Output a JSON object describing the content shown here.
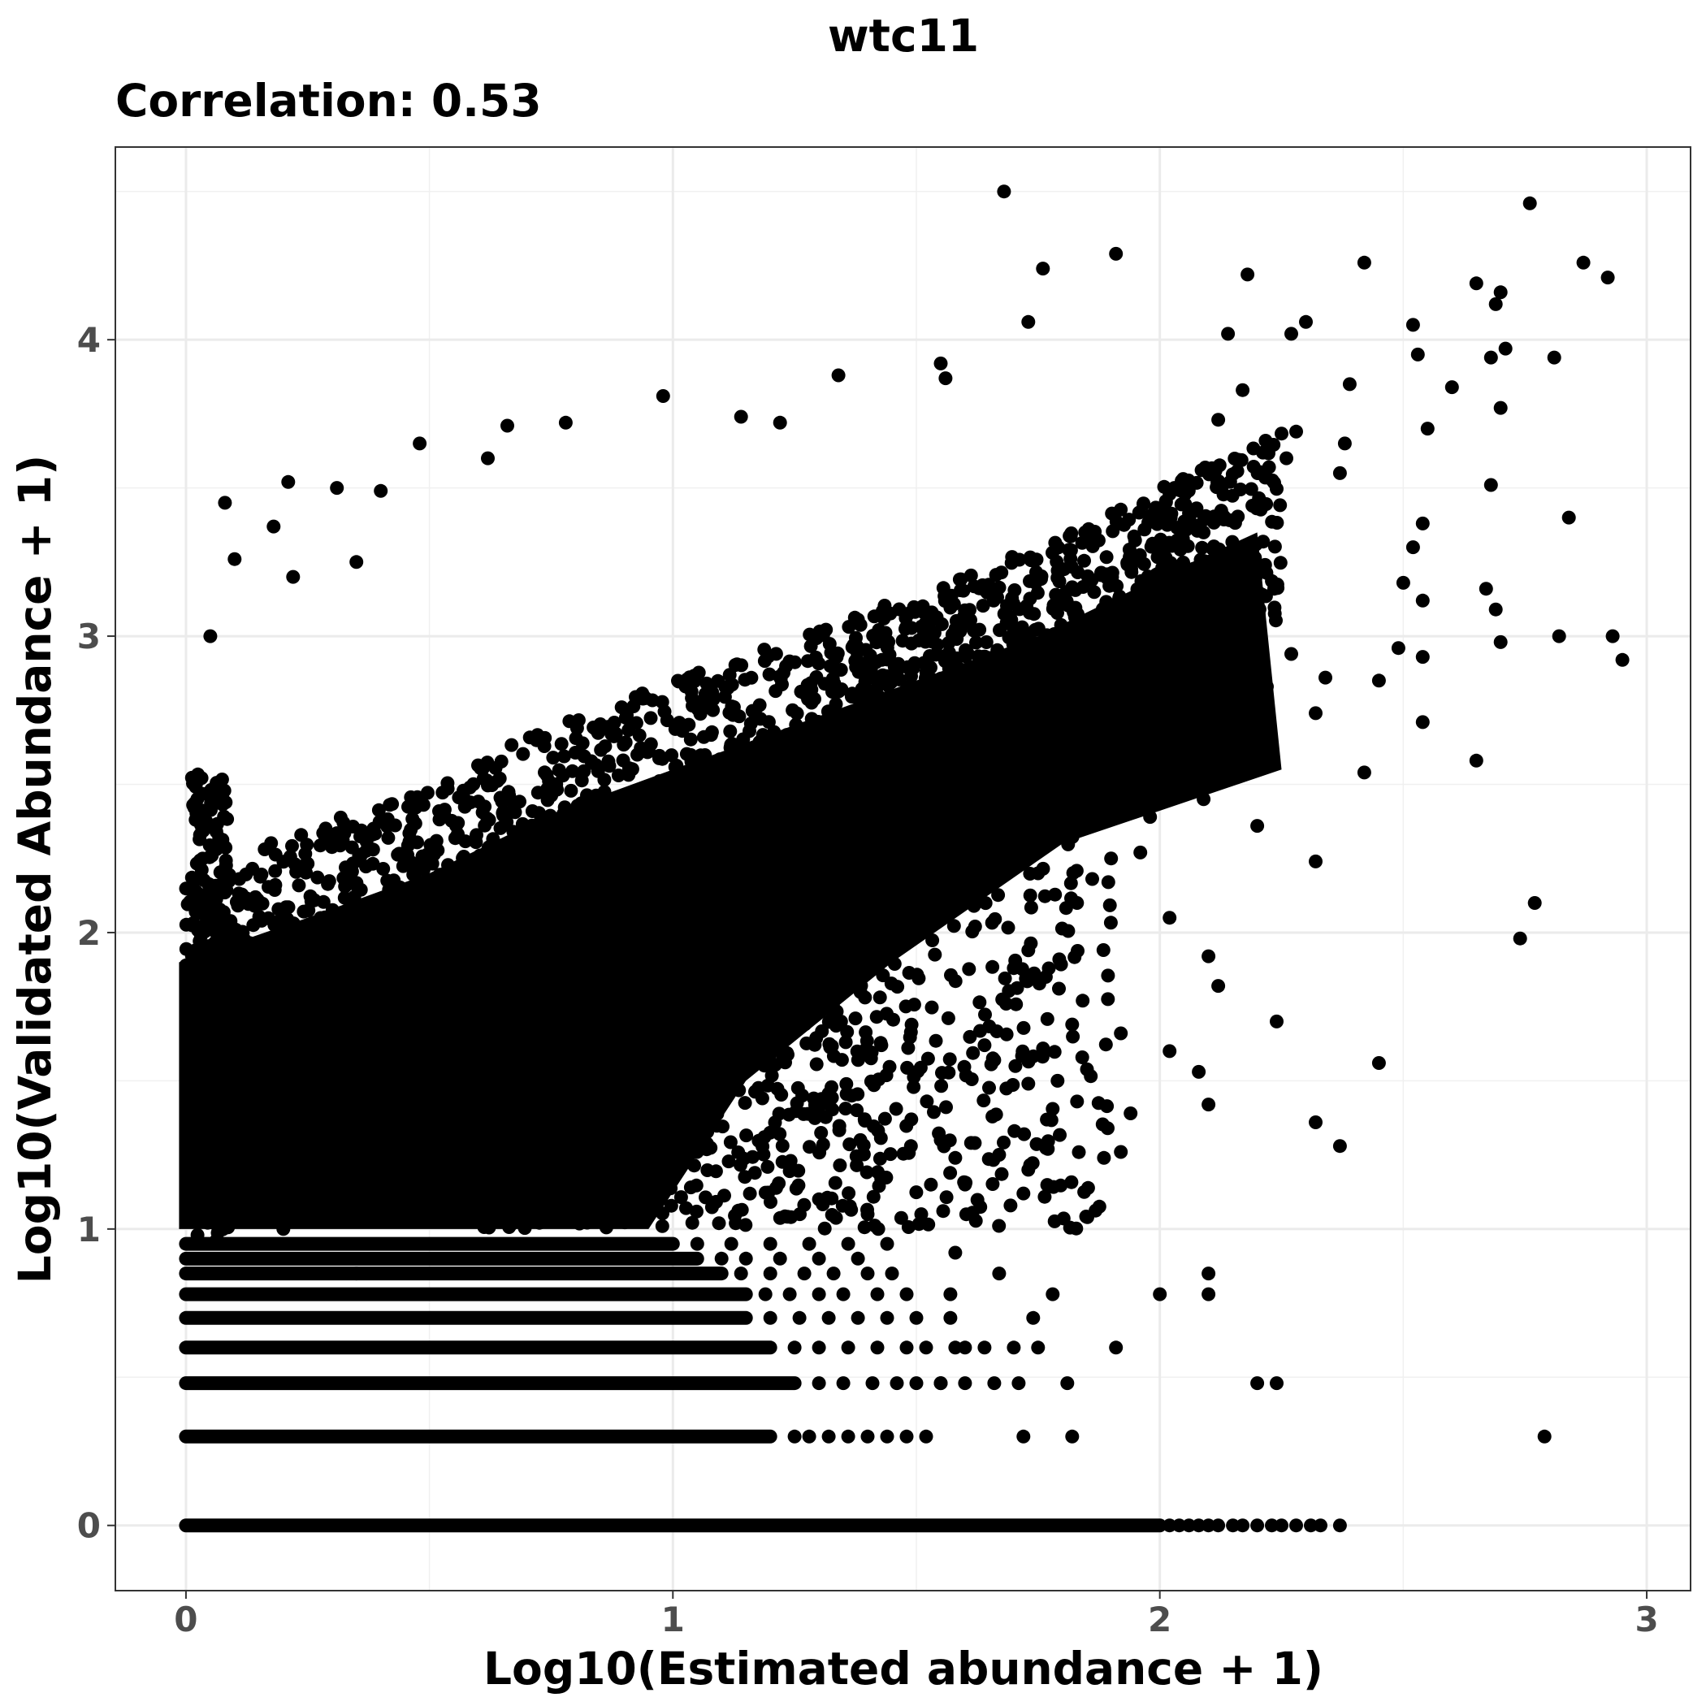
{
  "chart_data": {
    "type": "scatter",
    "title": "wtc11",
    "subtitle": "Correlation: 0.53",
    "xlabel": "Log10(Estimated abundance + 1)",
    "ylabel": "Log10(Validated Abundance + 1)",
    "xlim": [
      -0.145,
      3.09
    ],
    "ylim": [
      -0.22,
      4.65
    ],
    "x_ticks": [
      0,
      1,
      2,
      3
    ],
    "y_ticks": [
      0,
      1,
      2,
      3,
      4
    ],
    "x_tick_labels": [
      "0",
      "1",
      "2",
      "3"
    ],
    "y_tick_labels": [
      "0",
      "1",
      "2",
      "3",
      "4"
    ],
    "grid": true,
    "legend": "none",
    "point_color": "#000000",
    "series": [
      {
        "points": [
          [
            1.68,
            4.5
          ],
          [
            2.76,
            4.46
          ],
          [
            1.91,
            4.29
          ],
          [
            2.42,
            4.26
          ],
          [
            2.87,
            4.26
          ],
          [
            2.92,
            4.21
          ],
          [
            1.76,
            4.24
          ],
          [
            2.18,
            4.22
          ],
          [
            2.65,
            4.19
          ],
          [
            2.7,
            4.16
          ],
          [
            2.69,
            4.12
          ],
          [
            1.73,
            4.06
          ],
          [
            2.52,
            4.05
          ],
          [
            2.3,
            4.06
          ],
          [
            2.27,
            4.02
          ],
          [
            2.71,
            3.97
          ],
          [
            2.68,
            3.94
          ],
          [
            2.81,
            3.94
          ],
          [
            2.53,
            3.95
          ],
          [
            2.14,
            4.02
          ],
          [
            2.39,
            3.85
          ],
          [
            2.6,
            3.84
          ],
          [
            2.55,
            3.7
          ],
          [
            2.7,
            3.77
          ],
          [
            2.84,
            3.4
          ],
          [
            2.68,
            3.51
          ],
          [
            2.54,
            3.38
          ],
          [
            2.52,
            3.3
          ],
          [
            2.5,
            3.18
          ],
          [
            2.54,
            3.12
          ],
          [
            2.67,
            3.16
          ],
          [
            2.69,
            3.09
          ],
          [
            2.7,
            2.98
          ],
          [
            2.82,
            3.0
          ],
          [
            2.93,
            3.0
          ],
          [
            2.95,
            2.92
          ],
          [
            2.54,
            2.93
          ],
          [
            2.49,
            2.96
          ],
          [
            2.32,
            2.74
          ],
          [
            2.54,
            2.71
          ],
          [
            2.65,
            2.58
          ],
          [
            2.42,
            2.54
          ],
          [
            2.45,
            2.85
          ],
          [
            2.34,
            2.86
          ],
          [
            2.27,
            2.94
          ],
          [
            2.74,
            1.98
          ],
          [
            2.77,
            2.1
          ],
          [
            2.32,
            2.24
          ],
          [
            2.45,
            1.56
          ],
          [
            2.24,
            1.7
          ],
          [
            2.37,
            1.28
          ],
          [
            2.32,
            1.36
          ],
          [
            2.79,
            0.3
          ],
          [
            1.34,
            3.88
          ],
          [
            1.55,
            3.92
          ],
          [
            1.56,
            3.87
          ],
          [
            0.98,
            3.81
          ],
          [
            0.66,
            3.71
          ],
          [
            0.78,
            3.72
          ],
          [
            0.48,
            3.65
          ],
          [
            0.62,
            3.6
          ],
          [
            0.08,
            3.45
          ],
          [
            0.21,
            3.52
          ],
          [
            0.31,
            3.5
          ],
          [
            0.4,
            3.49
          ],
          [
            0.05,
            3.0
          ],
          [
            0.18,
            3.37
          ],
          [
            0.1,
            3.26
          ],
          [
            1.22,
            3.72
          ],
          [
            1.14,
            3.74
          ],
          [
            0.35,
            3.25
          ],
          [
            0.22,
            3.2
          ],
          [
            2.17,
            3.83
          ],
          [
            2.12,
            3.73
          ],
          [
            2.28,
            3.69
          ],
          [
            2.37,
            3.55
          ],
          [
            2.38,
            3.65
          ],
          [
            2.26,
            3.6
          ],
          [
            2.19,
            3.44
          ],
          [
            2.03,
            3.5
          ],
          [
            2.09,
            3.35
          ],
          [
            2.21,
            3.14
          ],
          [
            2.15,
            3.05
          ],
          [
            2.22,
            2.83
          ],
          [
            2.14,
            2.7
          ],
          [
            2.09,
            2.45
          ],
          [
            2.2,
            2.36
          ],
          [
            2.02,
            2.05
          ],
          [
            2.1,
            1.92
          ],
          [
            2.12,
            1.82
          ],
          [
            2.02,
            1.6
          ],
          [
            2.08,
            1.53
          ],
          [
            2.1,
            1.42
          ],
          [
            1.92,
            1.66
          ],
          [
            1.92,
            1.26
          ],
          [
            1.94,
            1.39
          ],
          [
            1.91,
            0.6
          ],
          [
            2.1,
            0.85
          ],
          [
            2.0,
            0.78
          ],
          [
            2.1,
            0.78
          ],
          [
            2.2,
            0.48
          ],
          [
            2.24,
            0.48
          ],
          [
            1.82,
            1.69
          ],
          [
            1.79,
            1.5
          ],
          [
            1.83,
            1.43
          ],
          [
            1.77,
            1.27
          ],
          [
            1.72,
            1.12
          ],
          [
            1.73,
            1.2
          ],
          [
            1.6,
            1.15
          ],
          [
            1.62,
            1.29
          ],
          [
            1.58,
            1.24
          ],
          [
            1.67,
            0.85
          ],
          [
            1.51,
            1.05
          ],
          [
            1.58,
            0.92
          ],
          [
            1.78,
            0.78
          ],
          [
            1.72,
            0.3
          ],
          [
            1.82,
            0.3
          ],
          [
            1.81,
            0.48
          ],
          [
            1.64,
            1.62
          ],
          [
            1.66,
            1.57
          ],
          [
            1.73,
            1.49
          ],
          [
            1.7,
            1.88
          ],
          [
            1.73,
            1.94
          ],
          [
            1.75,
            2.2
          ],
          [
            1.83,
            2.1
          ],
          [
            1.9,
            2.25
          ],
          [
            1.98,
            2.39
          ],
          [
            1.96,
            2.27
          ],
          [
            1.88,
            2.5
          ],
          [
            1.85,
            2.62
          ],
          [
            1.95,
            2.6
          ],
          [
            2.05,
            2.56
          ],
          [
            2.0,
            2.8
          ],
          [
            2.07,
            2.8
          ],
          [
            0.2,
            1.0
          ],
          [
            0.35,
            0.85
          ],
          [
            1.3,
            1.1
          ],
          [
            1.4,
            1.05
          ],
          [
            1.55,
            1.3
          ],
          [
            1.6,
            0.6
          ],
          [
            1.55,
            0.48
          ]
        ],
        "rows": [
          {
            "y": 0,
            "x_from": 0,
            "x_to": 2.0,
            "scatter_x": [
              2.02,
              2.04,
              2.06,
              2.08,
              2.1,
              2.12,
              2.15,
              2.17,
              2.2,
              2.23,
              2.25,
              2.28,
              2.31,
              2.33,
              2.37
            ]
          },
          {
            "y": 0.3,
            "x_from": 0,
            "x_to": 1.2,
            "scatter_x": [
              1.25,
              1.28,
              1.32,
              1.36,
              1.4,
              1.44,
              1.48,
              1.52
            ]
          },
          {
            "y": 0.48,
            "x_from": 0,
            "x_to": 1.25,
            "scatter_x": [
              1.3,
              1.35,
              1.41,
              1.46,
              1.5,
              1.55,
              1.6,
              1.66,
              1.71
            ]
          },
          {
            "y": 0.6,
            "x_from": 0,
            "x_to": 1.2,
            "scatter_x": [
              1.25,
              1.3,
              1.36,
              1.42,
              1.48,
              1.52,
              1.58,
              1.64,
              1.7,
              1.75
            ]
          },
          {
            "y": 0.7,
            "x_from": 0,
            "x_to": 1.15,
            "scatter_x": [
              1.2,
              1.26,
              1.32,
              1.38,
              1.44,
              1.5,
              1.57,
              1.74
            ]
          },
          {
            "y": 0.78,
            "x_from": 0,
            "x_to": 1.15,
            "scatter_x": [
              1.19,
              1.24,
              1.3,
              1.35,
              1.42,
              1.48,
              1.57
            ]
          },
          {
            "y": 0.85,
            "x_from": 0,
            "x_to": 1.1,
            "scatter_x": [
              1.14,
              1.2,
              1.27,
              1.33,
              1.4,
              1.45
            ]
          },
          {
            "y": 0.9,
            "x_from": 0,
            "x_to": 1.05,
            "scatter_x": [
              1.1,
              1.15,
              1.22,
              1.3,
              1.38
            ]
          },
          {
            "y": 0.95,
            "x_from": 0,
            "x_to": 1.0,
            "scatter_x": [
              1.05,
              1.12,
              1.2,
              1.28,
              1.36,
              1.44
            ]
          }
        ],
        "dense_region": {
          "description_free": true,
          "spine": [
            [
              0.0,
              1.9
            ],
            [
              0.25,
              2.05
            ],
            [
              0.5,
              2.2
            ],
            [
              0.75,
              2.4
            ],
            [
              1.0,
              2.55
            ],
            [
              1.25,
              2.7
            ],
            [
              1.5,
              2.85
            ],
            [
              1.75,
              3.0
            ],
            [
              2.0,
              3.2
            ],
            [
              2.2,
              3.35
            ]
          ],
          "x_range": [
            0.0,
            2.25
          ],
          "y_floor": 1.0
        }
      }
    ]
  }
}
